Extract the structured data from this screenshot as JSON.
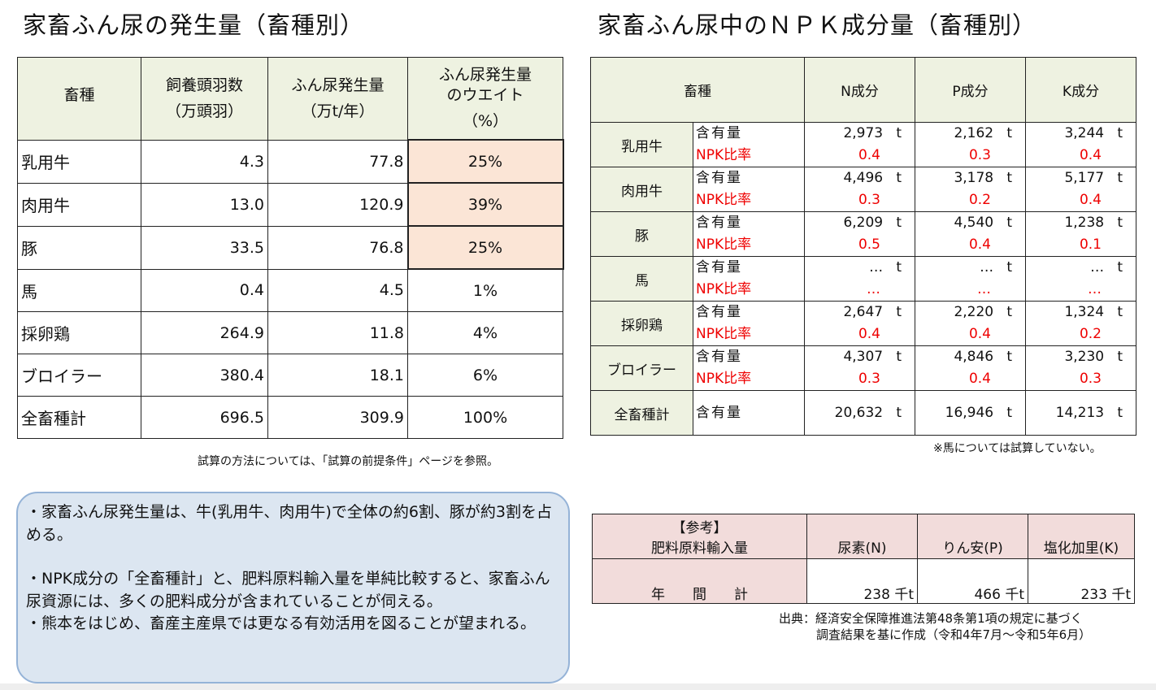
{
  "left": {
    "title": "家畜ふん尿の発生量（畜種別）",
    "headers": [
      {
        "l1": "畜種",
        "l2": ""
      },
      {
        "l1": "飼養頭羽数",
        "l2": "（万頭羽）"
      },
      {
        "l1": "ふん尿発生量",
        "l2": "（万t/年）"
      },
      {
        "l1": "ふん尿発生量\nのウエイト",
        "l2": "（%）"
      }
    ],
    "rows": [
      {
        "name": "乳用牛",
        "heads": "4.3",
        "amount": "77.8",
        "weight": "25%",
        "highlight": true
      },
      {
        "name": "肉用牛",
        "heads": "13.0",
        "amount": "120.9",
        "weight": "39%",
        "highlight": true
      },
      {
        "name": "豚",
        "heads": "33.5",
        "amount": "76.8",
        "weight": "25%",
        "highlight": true
      },
      {
        "name": "馬",
        "heads": "0.4",
        "amount": "4.5",
        "weight": "1%",
        "highlight": false
      },
      {
        "name": "採卵鶏",
        "heads": "264.9",
        "amount": "11.8",
        "weight": "4%",
        "highlight": false
      },
      {
        "name": "ブロイラー",
        "heads": "380.4",
        "amount": "18.1",
        "weight": "6%",
        "highlight": false
      },
      {
        "name": "全畜種計",
        "heads": "696.5",
        "amount": "309.9",
        "weight": "100%",
        "highlight": false
      }
    ],
    "note": "試算の方法については、「試算の前提条件」ページを参照。"
  },
  "right": {
    "title": "家畜ふん尿中のＮＰＫ成分量（畜種別）",
    "headers": [
      "畜種",
      "N成分",
      "P成分",
      "K成分"
    ],
    "content_label": "含有量",
    "ratio_label": "NPK比率",
    "unit": "t",
    "rows": [
      {
        "name": "乳用牛",
        "content": [
          "2,973",
          "2,162",
          "3,244"
        ],
        "ratio": [
          "0.4",
          "0.3",
          "0.4"
        ]
      },
      {
        "name": "肉用牛",
        "content": [
          "4,496",
          "3,178",
          "5,177"
        ],
        "ratio": [
          "0.3",
          "0.2",
          "0.4"
        ]
      },
      {
        "name": "豚",
        "content": [
          "6,209",
          "4,540",
          "1,238"
        ],
        "ratio": [
          "0.5",
          "0.4",
          "0.1"
        ]
      },
      {
        "name": "馬",
        "content": [
          "…",
          "…",
          "…"
        ],
        "ratio": [
          "…",
          "…",
          "…"
        ]
      },
      {
        "name": "採卵鶏",
        "content": [
          "2,647",
          "2,220",
          "1,324"
        ],
        "ratio": [
          "0.4",
          "0.4",
          "0.2"
        ]
      },
      {
        "name": "ブロイラー",
        "content": [
          "4,307",
          "4,846",
          "3,230"
        ],
        "ratio": [
          "0.3",
          "0.4",
          "0.3"
        ]
      }
    ],
    "total": {
      "name": "全畜種計",
      "content": [
        "20,632",
        "16,946",
        "14,213"
      ]
    },
    "note": "※馬については試算していない。"
  },
  "reference": {
    "header_l1": "【参考】",
    "header_l2": "肥料原料輸入量",
    "columns": [
      "尿素(N)",
      "りん安(P)",
      "塩化加里(K)"
    ],
    "row_label": "年　　間　　計",
    "values": [
      "238 千t",
      "466 千t",
      "233 千t"
    ],
    "source_l1": "出典：経済安全保障推進法第48条第1項の規定に基づく",
    "source_l2": "調査結果を基に作成（令和4年7月～令和5年6月）"
  },
  "summary": [
    "・家畜ふん尿発生量は、牛(乳用牛、肉用牛)で全体の約6割、豚が約3割を占める。",
    "",
    "・NPK成分の「全畜種計」と、肥料原料輸入量を単純比較すると、家畜ふん尿資源には、多くの肥料成分が含まれていることが伺える。",
    "・熊本をはじめ、畜産主産県では更なる有効活用を図ることが望まれる。"
  ]
}
